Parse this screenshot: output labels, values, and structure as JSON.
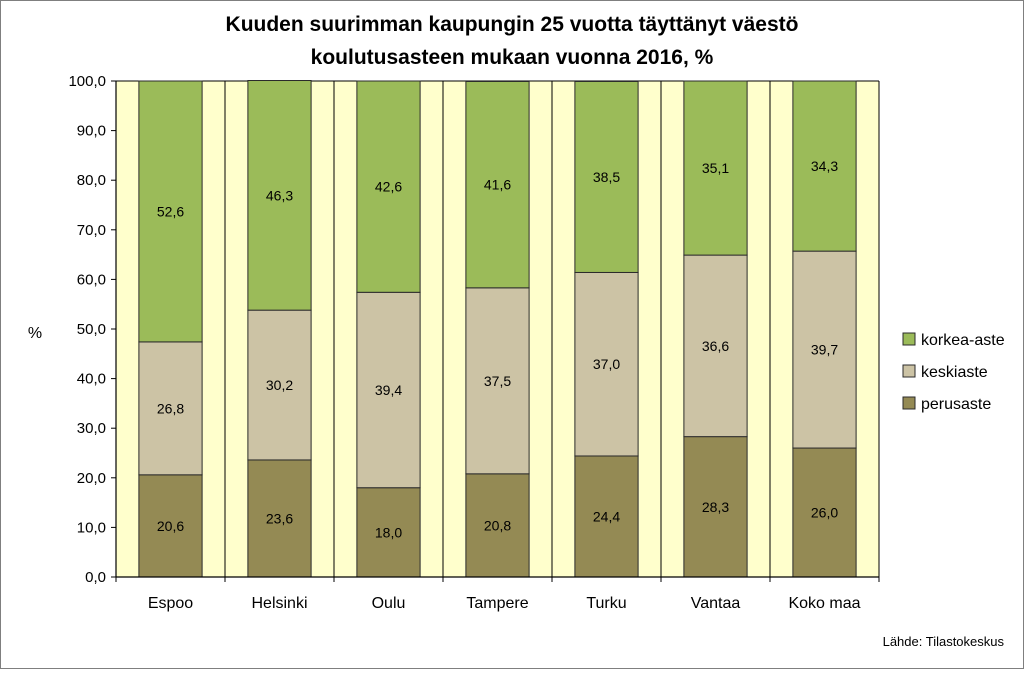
{
  "chart_data": {
    "type": "bar",
    "stacked": true,
    "title_line1": "Kuuden suurimman kaupungin 25 vuotta täyttänyt väestö",
    "title_line2": "koulutusasteen mukaan vuonna 2016, %",
    "ylabel": "%",
    "xlabel": "",
    "ylim": [
      0,
      100
    ],
    "yticks": [
      "0,0",
      "10,0",
      "20,0",
      "30,0",
      "40,0",
      "50,0",
      "60,0",
      "70,0",
      "80,0",
      "90,0",
      "100,0"
    ],
    "categories": [
      "Espoo",
      "Helsinki",
      "Oulu",
      "Tampere",
      "Turku",
      "Vantaa",
      "Koko maa"
    ],
    "series": [
      {
        "name": "perusaste",
        "color": "#948a54",
        "values": [
          20.6,
          23.6,
          18.0,
          20.8,
          24.4,
          28.3,
          26.0
        ],
        "labels": [
          "20,6",
          "23,6",
          "18,0",
          "20,8",
          "24,4",
          "28,3",
          "26,0"
        ]
      },
      {
        "name": "keskiaste",
        "color": "#ccc3a5",
        "values": [
          26.8,
          30.2,
          39.4,
          37.5,
          37.0,
          36.6,
          39.7
        ],
        "labels": [
          "26,8",
          "30,2",
          "39,4",
          "37,5",
          "37,0",
          "36,6",
          "39,7"
        ]
      },
      {
        "name": "korkea-aste",
        "color": "#9bbb59",
        "values": [
          52.6,
          46.3,
          42.6,
          41.6,
          38.5,
          35.1,
          34.3
        ],
        "labels": [
          "52,6",
          "46,3",
          "42,6",
          "41,6",
          "38,5",
          "35,1",
          "34,3"
        ]
      }
    ],
    "legend_order": [
      "korkea-aste",
      "keskiaste",
      "perusaste"
    ],
    "legend_position": "right",
    "grid": true,
    "plot_background": "#ffffcc",
    "source_note": "Lähde: Tilastokeskus"
  }
}
